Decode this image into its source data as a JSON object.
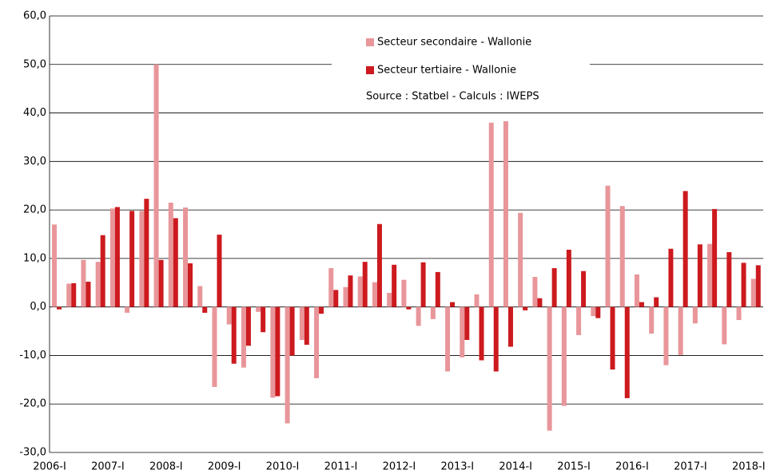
{
  "chart_data": {
    "type": "bar",
    "categories": [
      "2006-I",
      null,
      null,
      null,
      "2007-I",
      null,
      null,
      null,
      "2008-I",
      null,
      null,
      null,
      "2009-I",
      null,
      null,
      null,
      "2010-I",
      null,
      null,
      null,
      "2011-I",
      null,
      null,
      null,
      "2012-I",
      null,
      null,
      null,
      "2013-I",
      null,
      null,
      null,
      "2014-I",
      null,
      null,
      null,
      "2015-I",
      null,
      null,
      null,
      "2016-I",
      null,
      null,
      null,
      "2017-I",
      null,
      null,
      null,
      "2018-I"
    ],
    "series": [
      {
        "name": "Secteur secondaire - Wallonie",
        "color": "#e8969a",
        "values": [
          17.0,
          4.8,
          9.7,
          9.3,
          20.3,
          -1.2,
          19.8,
          50.0,
          21.5,
          20.5,
          4.3,
          -16.5,
          -3.6,
          -12.5,
          -1.0,
          -18.7,
          -24.0,
          -6.8,
          -14.7,
          8.0,
          4.1,
          6.3,
          5.1,
          2.9,
          5.6,
          -3.9,
          -2.5,
          -13.3,
          -10.4,
          2.6,
          38.0,
          38.3,
          19.4,
          6.2,
          -25.5,
          -20.4,
          -5.8,
          -1.9,
          25.0,
          20.8,
          6.7,
          -5.5,
          -12.0,
          -9.9,
          -3.4,
          13.0,
          -7.7,
          -2.7,
          5.8
        ]
      },
      {
        "name": "Secteur tertiaire - Wallonie",
        "color": "#cc1a1e",
        "values": [
          -0.5,
          4.9,
          5.2,
          14.8,
          20.6,
          19.8,
          22.3,
          9.7,
          18.3,
          9.0,
          -1.2,
          14.9,
          -11.7,
          -8.0,
          -5.2,
          -18.4,
          -10.0,
          -7.8,
          -1.4,
          3.5,
          6.5,
          9.3,
          17.1,
          8.7,
          -0.5,
          9.2,
          7.2,
          1.0,
          -6.8,
          -11.0,
          -13.3,
          -8.2,
          -0.7,
          1.8,
          8.0,
          11.8,
          7.4,
          -2.3,
          -12.9,
          -18.8,
          1.0,
          2.0,
          12.0,
          23.9,
          12.9,
          20.2,
          11.3,
          9.1,
          8.6
        ]
      }
    ],
    "annotations": [
      "Source : Statbel - Calculs : IWEPS"
    ],
    "ylim": [
      -30,
      60
    ],
    "yticks": [
      {
        "value": -30,
        "label": "-30,0"
      },
      {
        "value": -20,
        "label": "-20,0"
      },
      {
        "value": -10,
        "label": "-10,0"
      },
      {
        "value": 0,
        "label": "0,0"
      },
      {
        "value": 10,
        "label": "10,0"
      },
      {
        "value": 20,
        "label": "20,0"
      },
      {
        "value": 30,
        "label": "30,0"
      },
      {
        "value": 40,
        "label": "40,0"
      },
      {
        "value": 50,
        "label": "50,0"
      },
      {
        "value": 60,
        "label": "60,0"
      }
    ],
    "grid": true
  }
}
